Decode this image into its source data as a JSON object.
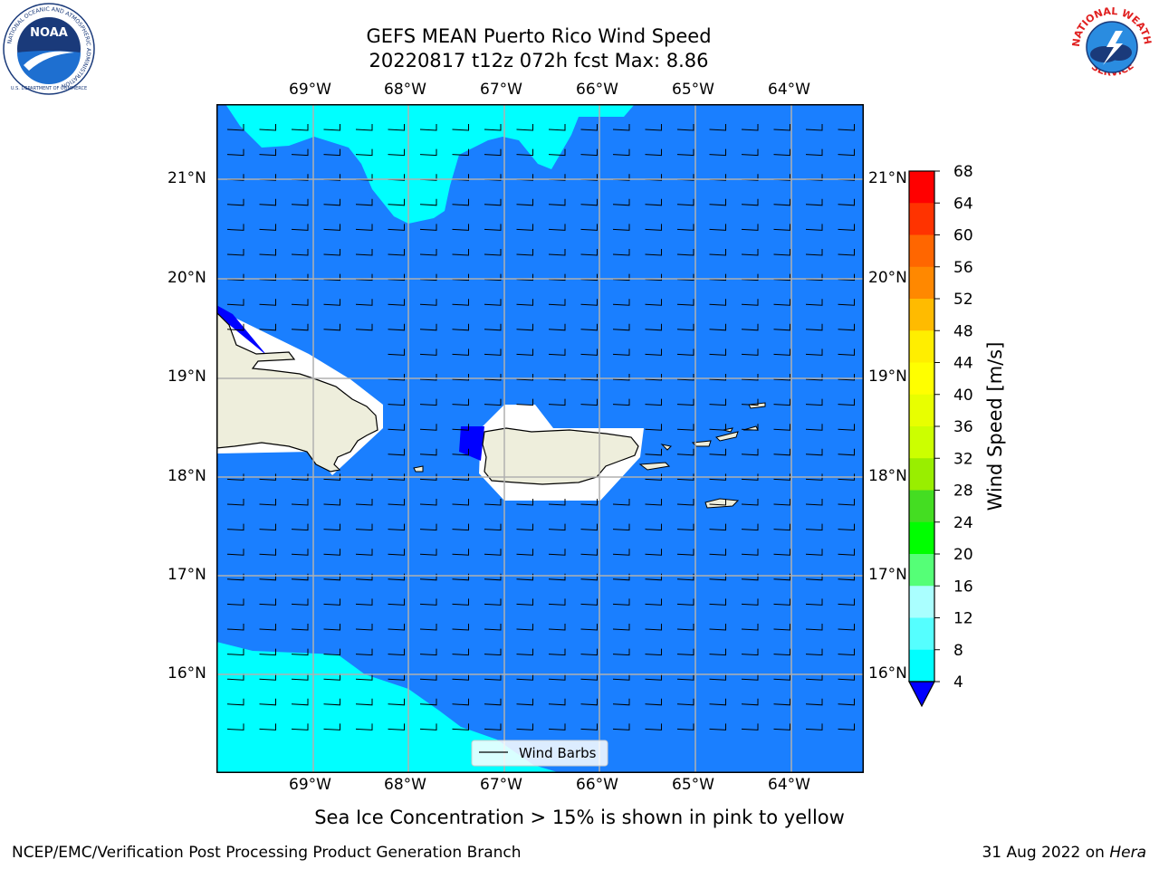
{
  "header": {
    "title_line1": "GEFS MEAN Puerto Rico Wind Speed",
    "title_line2": "20220817 t12z 072h fcst   Max: 8.86"
  },
  "logos": {
    "left": {
      "name": "NOAA",
      "ring_text": "NATIONAL OCEANIC AND ATMOSPHERIC ADMINISTRATION",
      "bottom_text": "U.S. DEPARTMENT OF COMMERCE"
    },
    "right": {
      "top_text": "NATIONAL WEATHER",
      "bottom_text": "SERVICE"
    }
  },
  "map": {
    "lon_labels": [
      "69°W",
      "68°W",
      "67°W",
      "66°W",
      "65°W",
      "64°W"
    ],
    "lat_labels": [
      "21°N",
      "20°N",
      "19°N",
      "18°N",
      "17°N",
      "16°N"
    ],
    "legend_label": "Wind Barbs",
    "colors": {
      "ocean": "#1a7fff",
      "light": "#00ffff",
      "land": "#eeeedc",
      "white": "#ffffff",
      "dark": "#0000ff"
    }
  },
  "colorbar": {
    "label": "Wind Speed [m/s]",
    "ticks": [
      "68",
      "64",
      "60",
      "56",
      "52",
      "48",
      "44",
      "40",
      "36",
      "32",
      "28",
      "24",
      "20",
      "16",
      "12",
      "8",
      "4"
    ],
    "colors_top_to_bottom": [
      "#ff0000",
      "#ff3300",
      "#ff6600",
      "#ff8800",
      "#ffbb00",
      "#ffee00",
      "#ffff00",
      "#e8ff00",
      "#ccff00",
      "#99ee00",
      "#44dd22",
      "#00ff00",
      "#55ff77",
      "#aaffff",
      "#55ffff",
      "#00ffff",
      "#1a7fff"
    ],
    "under_color": "#0000ff"
  },
  "caption": "Sea Ice Concentration > 15% is shown in pink to yellow",
  "footer": {
    "left": "NCEP/EMC/Verification Post Processing Product Generation Branch",
    "right_date": "31 Aug 2022 on ",
    "right_machine": "Hera"
  }
}
